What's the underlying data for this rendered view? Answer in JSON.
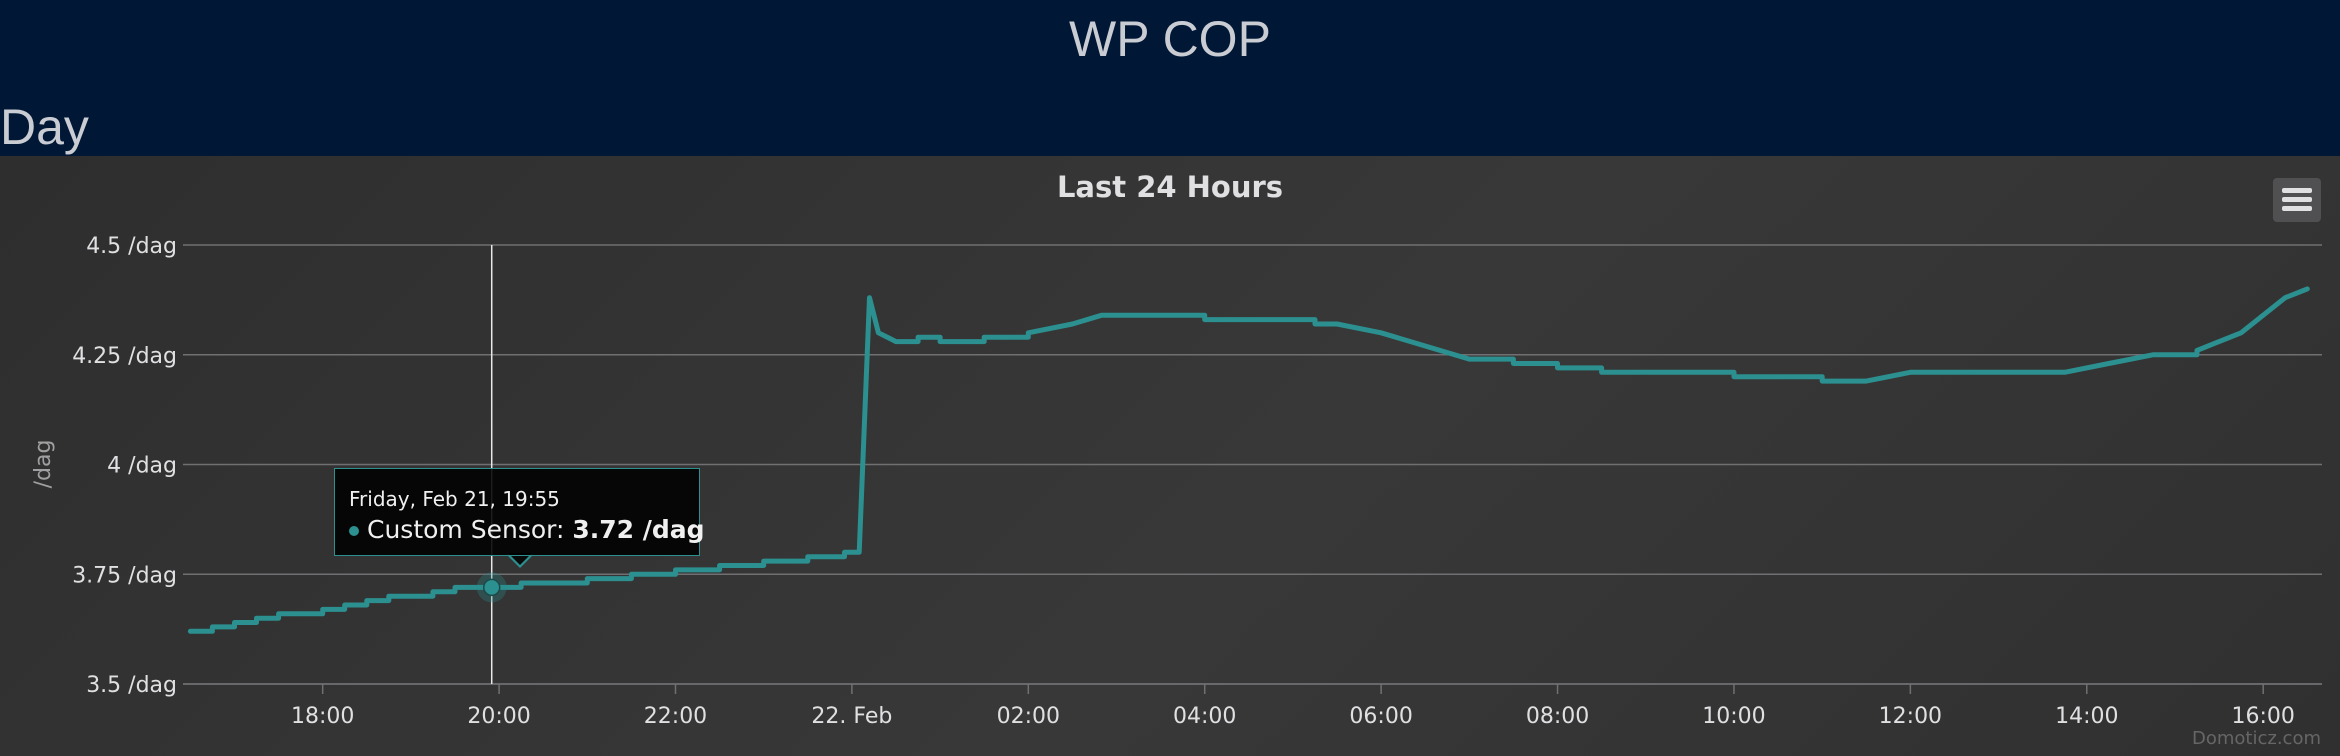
{
  "page": {
    "title": "WP COP",
    "section": "Day"
  },
  "chart": {
    "title": "Last 24 Hours",
    "menu_icon": "hamburger-menu-icon",
    "credits": "Domoticz.com",
    "tooltip": {
      "header": "Friday, Feb 21, 19:55",
      "series_label": "Custom Sensor:",
      "value": "3.72 /dag"
    }
  },
  "colors": {
    "background": "#001735",
    "panel": "#333333",
    "series": "#2b908f",
    "grid": "#707073",
    "text": "#e0e0e3"
  },
  "chart_data": {
    "type": "line",
    "title": "Last 24 Hours",
    "ylabel": "/dag",
    "xlabel": "",
    "ylim": [
      3.5,
      4.5
    ],
    "xlim": [
      "2020-02-21 16:25",
      "2020-02-22 16:40"
    ],
    "grid": true,
    "legend": "none",
    "yticks": [
      "3.5 /dag",
      "3.75 /dag",
      "4 /dag",
      "4.25 /dag",
      "4.5 /dag"
    ],
    "ytick_values": [
      3.5,
      3.75,
      4.0,
      4.25,
      4.5
    ],
    "xticks": [
      "18:00",
      "20:00",
      "22:00",
      "22. Feb",
      "02:00",
      "04:00",
      "06:00",
      "08:00",
      "10:00",
      "12:00",
      "14:00",
      "16:00"
    ],
    "xtick_values": [
      "2020-02-21 18:00",
      "2020-02-21 20:00",
      "2020-02-21 22:00",
      "2020-02-22 00:00",
      "2020-02-22 02:00",
      "2020-02-22 04:00",
      "2020-02-22 06:00",
      "2020-02-22 08:00",
      "2020-02-22 10:00",
      "2020-02-22 12:00",
      "2020-02-22 14:00",
      "2020-02-22 16:00"
    ],
    "series": [
      {
        "name": "Custom Sensor",
        "x": [
          "2020-02-21 16:30",
          "2020-02-21 16:45",
          "2020-02-21 17:00",
          "2020-02-21 17:15",
          "2020-02-21 17:30",
          "2020-02-21 17:45",
          "2020-02-21 18:00",
          "2020-02-21 18:15",
          "2020-02-21 18:30",
          "2020-02-21 18:45",
          "2020-02-21 19:00",
          "2020-02-21 19:15",
          "2020-02-21 19:30",
          "2020-02-21 19:55",
          "2020-02-21 20:15",
          "2020-02-21 20:30",
          "2020-02-21 21:00",
          "2020-02-21 21:30",
          "2020-02-21 22:00",
          "2020-02-21 22:30",
          "2020-02-21 23:00",
          "2020-02-21 23:30",
          "2020-02-21 23:55",
          "2020-02-22 00:05",
          "2020-02-22 00:12",
          "2020-02-22 00:18",
          "2020-02-22 00:30",
          "2020-02-22 00:45",
          "2020-02-22 01:00",
          "2020-02-22 01:30",
          "2020-02-22 02:00",
          "2020-02-22 02:30",
          "2020-02-22 02:50",
          "2020-02-22 03:00",
          "2020-02-22 03:30",
          "2020-02-22 04:00",
          "2020-02-22 05:00",
          "2020-02-22 05:15",
          "2020-02-22 05:30",
          "2020-02-22 06:00",
          "2020-02-22 06:30",
          "2020-02-22 07:00",
          "2020-02-22 07:30",
          "2020-02-22 08:00",
          "2020-02-22 08:30",
          "2020-02-22 09:00",
          "2020-02-22 10:00",
          "2020-02-22 10:30",
          "2020-02-22 11:00",
          "2020-02-22 11:30",
          "2020-02-22 12:00",
          "2020-02-22 13:00",
          "2020-02-22 13:45",
          "2020-02-22 14:15",
          "2020-02-22 14:45",
          "2020-02-22 15:15",
          "2020-02-22 15:30",
          "2020-02-22 15:45",
          "2020-02-22 16:00",
          "2020-02-22 16:15",
          "2020-02-22 16:30"
        ],
        "y": [
          3.62,
          3.63,
          3.64,
          3.65,
          3.66,
          3.66,
          3.67,
          3.68,
          3.69,
          3.7,
          3.7,
          3.71,
          3.72,
          3.72,
          3.73,
          3.73,
          3.74,
          3.75,
          3.76,
          3.77,
          3.78,
          3.79,
          3.8,
          3.8,
          4.38,
          4.3,
          4.28,
          4.29,
          4.28,
          4.29,
          4.3,
          4.32,
          4.34,
          4.34,
          4.34,
          4.33,
          4.33,
          4.32,
          4.32,
          4.3,
          4.27,
          4.24,
          4.23,
          4.22,
          4.21,
          4.21,
          4.2,
          4.2,
          4.19,
          4.19,
          4.21,
          4.21,
          4.21,
          4.23,
          4.25,
          4.26,
          4.28,
          4.3,
          4.34,
          4.38,
          4.4
        ]
      }
    ],
    "highlight": {
      "x": "2020-02-21 19:55",
      "y": 3.72
    }
  }
}
